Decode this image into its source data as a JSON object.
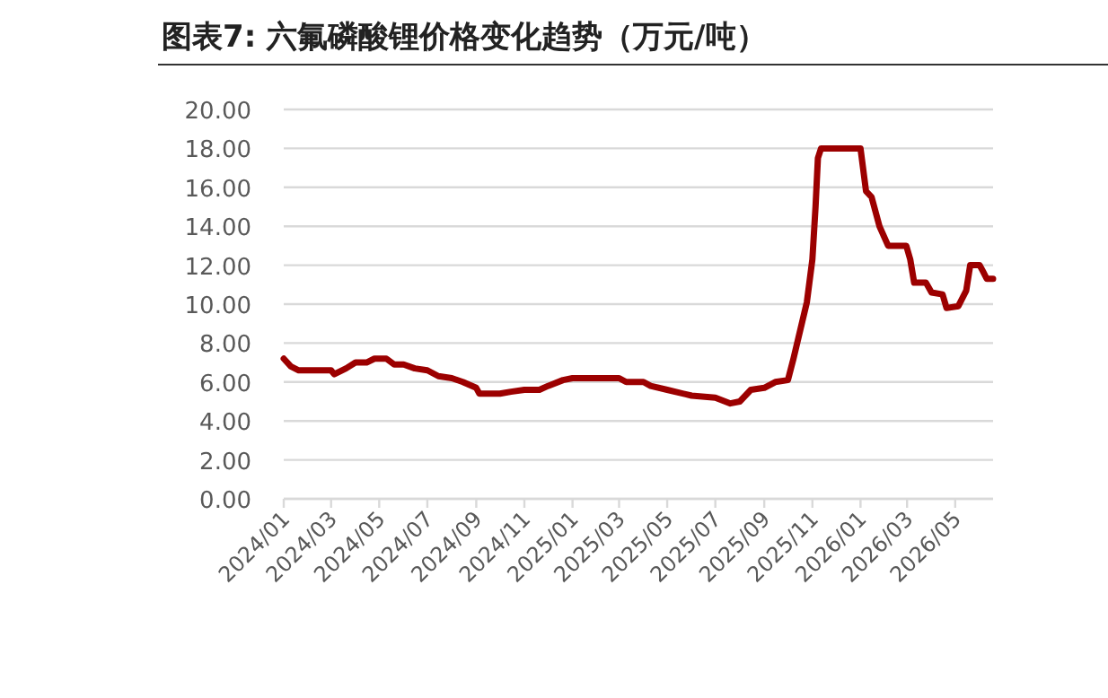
{
  "chart_data": {
    "type": "line",
    "title": "图表7: 六氟磷酸锂价格变化趋势（万元/吨）",
    "xlim": [
      "2024-01-01",
      "2026-06-18"
    ],
    "xticks": [
      {
        "value": "2024-01",
        "label": "2024/01"
      },
      {
        "value": "2024-03",
        "label": "2024/03"
      },
      {
        "value": "2024-05",
        "label": "2024/05"
      },
      {
        "value": "2024-07",
        "label": "2024/07"
      },
      {
        "value": "2024-09",
        "label": "2024/09"
      },
      {
        "value": "2024-11",
        "label": "2024/11"
      },
      {
        "value": "2025-01",
        "label": "2025/01"
      },
      {
        "value": "2025-03",
        "label": "2025/03"
      },
      {
        "value": "2025-05",
        "label": "2025/05"
      },
      {
        "value": "2025-07",
        "label": "2025/07"
      },
      {
        "value": "2025-09",
        "label": "2025/09"
      },
      {
        "value": "2025-11",
        "label": "2025/11"
      },
      {
        "value": "2026-01",
        "label": "2026/01"
      },
      {
        "value": "2026-03",
        "label": "2026/03"
      },
      {
        "value": "2026-05",
        "label": "2026/05"
      }
    ],
    "ylim": [
      0,
      20
    ],
    "yticks": [
      {
        "value": 0,
        "label": "0.00"
      },
      {
        "value": 2,
        "label": "2.00"
      },
      {
        "value": 4,
        "label": "4.00"
      },
      {
        "value": 6,
        "label": "6.00"
      },
      {
        "value": 8,
        "label": "8.00"
      },
      {
        "value": 10,
        "label": "10.00"
      },
      {
        "value": 12,
        "label": "12.00"
      },
      {
        "value": 14,
        "label": "14.00"
      },
      {
        "value": 16,
        "label": "16.00"
      },
      {
        "value": 18,
        "label": "18.00"
      },
      {
        "value": 20,
        "label": "20.00"
      }
    ],
    "grid": "y",
    "marker": "none",
    "line_style": "solid",
    "series": [
      {
        "color": "#9c0000",
        "x": [
          "2024-01-01",
          "2024-01-10",
          "2024-01-20",
          "2024-03-01",
          "2024-03-05",
          "2024-03-20",
          "2024-04-01",
          "2024-04-15",
          "2024-04-25",
          "2024-05-10",
          "2024-05-20",
          "2024-06-01",
          "2024-06-15",
          "2024-07-01",
          "2024-07-15",
          "2024-08-01",
          "2024-08-15",
          "2024-09-01",
          "2024-09-05",
          "2024-10-01",
          "2024-10-15",
          "2024-11-01",
          "2024-11-20",
          "2024-12-01",
          "2024-12-20",
          "2025-01-01",
          "2025-03-01",
          "2025-03-10",
          "2025-04-01",
          "2025-04-10",
          "2025-05-01",
          "2025-06-01",
          "2025-07-01",
          "2025-07-20",
          "2025-08-01",
          "2025-08-15",
          "2025-09-01",
          "2025-09-15",
          "2025-10-01",
          "2025-10-08",
          "2025-10-25",
          "2025-11-01",
          "2025-11-05",
          "2025-11-08",
          "2025-11-12",
          "2026-01-01",
          "2026-01-08",
          "2026-01-15",
          "2026-01-25",
          "2026-02-05",
          "2026-02-28",
          "2026-03-05",
          "2026-03-10",
          "2026-03-25",
          "2026-04-01",
          "2026-04-15",
          "2026-04-20",
          "2026-05-05",
          "2026-05-15",
          "2026-05-20",
          "2026-06-01",
          "2026-06-05",
          "2026-06-10",
          "2026-06-18"
        ],
        "values": [
          7.2,
          6.8,
          6.6,
          6.6,
          6.4,
          6.7,
          7.0,
          7.0,
          7.2,
          7.2,
          6.9,
          6.9,
          6.7,
          6.6,
          6.3,
          6.2,
          6.0,
          5.7,
          5.4,
          5.4,
          5.5,
          5.6,
          5.6,
          5.8,
          6.1,
          6.2,
          6.2,
          6.0,
          6.0,
          5.8,
          5.6,
          5.3,
          5.2,
          4.9,
          5.0,
          5.6,
          5.7,
          6.0,
          6.1,
          7.2,
          10.1,
          12.3,
          15.0,
          17.5,
          18.0,
          18.0,
          15.8,
          15.5,
          14.0,
          13.0,
          13.0,
          12.3,
          11.1,
          11.1,
          10.6,
          10.5,
          9.8,
          9.9,
          10.7,
          12.0,
          12.0,
          11.7,
          11.3,
          11.3
        ]
      }
    ]
  }
}
